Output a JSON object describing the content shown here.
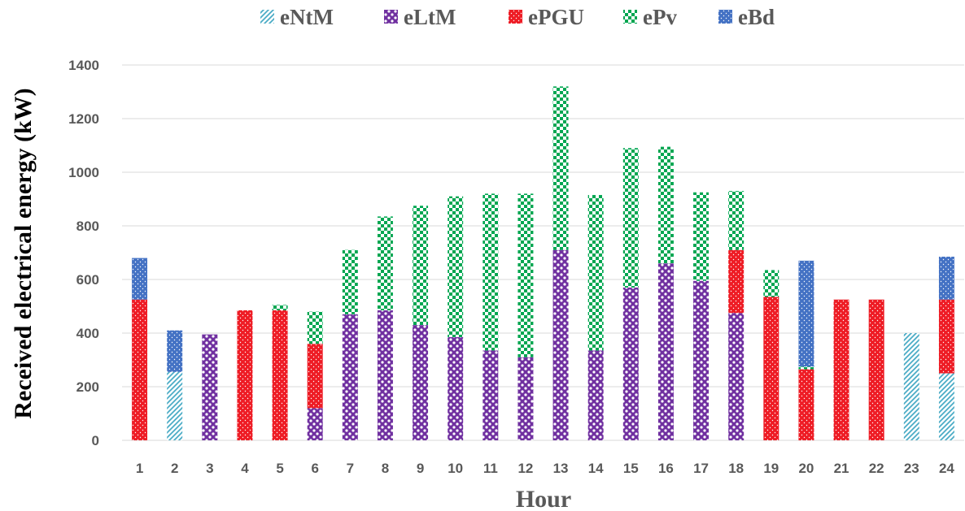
{
  "chart_data": {
    "type": "bar",
    "stacked": true,
    "title": "",
    "xlabel": "Hour",
    "ylabel": "Received electrical energy (kW)",
    "ylim": [
      0,
      1400
    ],
    "yticks": [
      0,
      200,
      400,
      600,
      800,
      1000,
      1200,
      1400
    ],
    "grid": true,
    "legend_position": "top",
    "categories": [
      "1",
      "2",
      "3",
      "4",
      "5",
      "6",
      "7",
      "8",
      "9",
      "10",
      "11",
      "12",
      "13",
      "14",
      "15",
      "16",
      "17",
      "18",
      "19",
      "20",
      "21",
      "22",
      "23",
      "24"
    ],
    "series": [
      {
        "name": "eNtM",
        "color": "#4bacc6",
        "pattern": "diagonal-stripes",
        "values": [
          0,
          255,
          0,
          0,
          0,
          0,
          0,
          0,
          0,
          0,
          0,
          0,
          0,
          0,
          0,
          0,
          0,
          0,
          0,
          0,
          0,
          0,
          400,
          250
        ]
      },
      {
        "name": "eLtM",
        "color": "#7030a0",
        "pattern": "checker",
        "values": [
          0,
          0,
          395,
          0,
          0,
          120,
          470,
          485,
          430,
          385,
          335,
          310,
          710,
          335,
          570,
          660,
          595,
          475,
          0,
          0,
          0,
          0,
          0,
          0
        ]
      },
      {
        "name": "ePGU",
        "color": "#ff0000",
        "pattern": "dots",
        "values": [
          525,
          0,
          0,
          485,
          485,
          240,
          0,
          0,
          0,
          0,
          0,
          0,
          0,
          0,
          0,
          0,
          0,
          235,
          535,
          265,
          525,
          525,
          0,
          275
        ]
      },
      {
        "name": "ePv",
        "color": "#00a651",
        "pattern": "checker",
        "values": [
          0,
          0,
          0,
          0,
          20,
          120,
          240,
          350,
          445,
          525,
          585,
          610,
          610,
          580,
          520,
          435,
          330,
          220,
          100,
          10,
          0,
          0,
          0,
          0
        ]
      },
      {
        "name": "eBd",
        "color": "#4472c4",
        "pattern": "dots",
        "values": [
          155,
          155,
          0,
          0,
          0,
          0,
          0,
          0,
          0,
          0,
          0,
          0,
          0,
          0,
          0,
          0,
          0,
          0,
          0,
          395,
          0,
          0,
          0,
          160
        ]
      }
    ]
  }
}
